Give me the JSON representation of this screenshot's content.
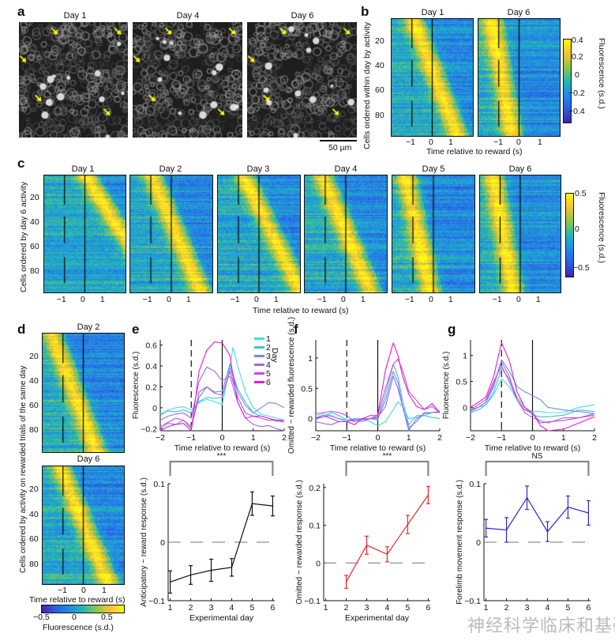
{
  "panel_a": {
    "label": "a",
    "titles": [
      "Day 1",
      "Day 4",
      "Day 6"
    ],
    "scale_bar": "50 µm",
    "arrow_color": "#ffff00"
  },
  "panel_b": {
    "label": "b",
    "titles": [
      "Day 1",
      "Day 6"
    ],
    "ylabel": "Cells ordered within day by activity",
    "xlabel": "Time relative to reward (s)",
    "yticks": [
      "20",
      "40",
      "60",
      "80"
    ],
    "xticks": [
      "−1",
      "0",
      "1"
    ],
    "colorbar_ticks": [
      "0.4",
      "0.2",
      "0",
      "−0.2",
      "−0.4"
    ],
    "colorbar_label": "Fluorescence (s.d.)"
  },
  "panel_c": {
    "label": "c",
    "titles": [
      "Day 1",
      "Day 2",
      "Day 3",
      "Day 4",
      "Day 5",
      "Day 6"
    ],
    "ylabel": "Cells ordered by day 6 activity",
    "xlabel": "Time relative to reward (s)",
    "yticks": [
      "20",
      "40",
      "60",
      "80"
    ],
    "xticks": [
      "−1",
      "0",
      "1"
    ],
    "colorbar_ticks": [
      "0.5",
      "0",
      "−0.5"
    ],
    "colorbar_label": "Fluorescence (s.d.)"
  },
  "panel_d": {
    "label": "d",
    "titles": [
      "Day 2",
      "Day 6"
    ],
    "ylabel": "Cells ordered by activity on rewarded trials of the same day",
    "xlabel": "Time relative to reward (s)",
    "yticks": [
      "20",
      "40",
      "60",
      "80"
    ],
    "xticks": [
      "−1",
      "0",
      "1"
    ],
    "colorbar_ticks": [
      "−0.5",
      "0",
      "0.5"
    ],
    "colorbar_label": "Fluorescence (s.d.)"
  },
  "panel_e": {
    "label": "e"
  },
  "panel_f": {
    "label": "f"
  },
  "panel_g": {
    "label": "g"
  },
  "legend": {
    "title": "Day",
    "entries": [
      {
        "label": "1",
        "color": "#3fe0e6"
      },
      {
        "label": "2",
        "color": "#4db8d6"
      },
      {
        "label": "3",
        "color": "#6b8ee6"
      },
      {
        "label": "4",
        "color": "#9b6ae6"
      },
      {
        "label": "5",
        "color": "#c84ad6"
      },
      {
        "label": "6",
        "color": "#e81cd0"
      }
    ]
  },
  "watermark": "神经科学临床和基础",
  "chart_data": [
    {
      "id": "e-top",
      "type": "line",
      "title": "",
      "xlabel": "Time relative to reward (s)",
      "ylabel": "Fluorescence (s.d.)",
      "xlim": [
        -2,
        2
      ],
      "ylim": [
        -0.22,
        0.65
      ],
      "xticks": [
        -2,
        -1,
        0,
        1,
        2
      ],
      "xtick_labels": [
        "−2",
        "−1",
        "0",
        "1",
        "2"
      ],
      "yticks": [
        -0.2,
        0,
        0.2,
        0.4,
        0.6
      ],
      "ytick_labels": [
        "−0.2",
        "0",
        "0.2",
        "0.4",
        "0.6"
      ],
      "vlines": [
        {
          "x": -1,
          "style": "dashed"
        },
        {
          "x": 0,
          "style": "solid"
        }
      ],
      "x": [
        -2,
        -1.75,
        -1.5,
        -1.25,
        -1,
        -0.75,
        -0.5,
        -0.25,
        0,
        0.25,
        0.35,
        0.5,
        0.75,
        1,
        1.25,
        1.5,
        1.75,
        2
      ],
      "series": [
        {
          "name": "1",
          "values": [
            -0.08,
            -0.02,
            0.0,
            0.01,
            -0.02,
            0.05,
            0.08,
            0.06,
            0.03,
            0.4,
            0.58,
            0.4,
            0.15,
            0.0,
            -0.06,
            -0.08,
            -0.1,
            -0.12
          ]
        },
        {
          "name": "2",
          "values": [
            -0.06,
            -0.03,
            -0.04,
            -0.02,
            -0.05,
            0.06,
            0.1,
            0.09,
            0.1,
            0.38,
            0.3,
            0.15,
            0.02,
            -0.05,
            -0.08,
            -0.1,
            -0.13,
            -0.12
          ]
        },
        {
          "name": "3",
          "values": [
            -0.2,
            -0.15,
            -0.16,
            -0.12,
            -0.18,
            0.1,
            0.2,
            0.15,
            0.16,
            0.42,
            0.32,
            0.18,
            0.05,
            -0.05,
            0.0,
            0.05,
            0.04,
            0.0
          ]
        },
        {
          "name": "4",
          "values": [
            -0.12,
            -0.08,
            -0.06,
            -0.05,
            -0.1,
            0.25,
            0.39,
            0.35,
            0.26,
            0.3,
            0.2,
            0.05,
            -0.1,
            -0.16,
            -0.18,
            -0.17,
            -0.2,
            -0.22
          ]
        },
        {
          "name": "5",
          "values": [
            -0.18,
            -0.14,
            -0.1,
            -0.12,
            -0.2,
            0.15,
            0.2,
            0.14,
            0.12,
            0.35,
            0.25,
            0.1,
            -0.05,
            -0.08,
            -0.1,
            -0.12,
            -0.12,
            -0.14
          ]
        },
        {
          "name": "6",
          "values": [
            -0.22,
            -0.18,
            -0.16,
            -0.15,
            -0.22,
            0.35,
            0.55,
            0.63,
            0.62,
            0.5,
            0.3,
            0.05,
            -0.1,
            -0.08,
            -0.08,
            -0.1,
            -0.12,
            -0.12
          ]
        }
      ]
    },
    {
      "id": "e-bottom",
      "type": "line",
      "xlabel": "Experimental day",
      "ylabel": "Anticipatory − reward response (s.d.)",
      "xlim": [
        0.9,
        6.1
      ],
      "ylim": [
        -0.1,
        0.1
      ],
      "xticks": [
        1,
        2,
        3,
        4,
        5,
        6
      ],
      "yticks": [
        -0.1,
        0,
        0.1
      ],
      "ytick_labels": [
        "−0.1",
        "0",
        "0.1"
      ],
      "significance": "***",
      "bracket": [
        1,
        6
      ],
      "color": "#111111",
      "x": [
        1,
        2,
        3,
        4,
        5,
        6
      ],
      "values": [
        -0.068,
        -0.056,
        -0.048,
        -0.043,
        0.066,
        0.062
      ],
      "errors": [
        0.019,
        0.016,
        0.019,
        0.015,
        0.02,
        0.017
      ]
    },
    {
      "id": "f-top",
      "type": "line",
      "xlabel": "Time relative to reward (s)",
      "ylabel": "Omitted − rewarded fluorescence (s.d.)",
      "xlim": [
        -2,
        2
      ],
      "ylim": [
        -0.2,
        1.3
      ],
      "xticks": [
        -2,
        -1,
        0,
        1,
        2
      ],
      "xtick_labels": [
        "−2",
        "−1",
        "0",
        "1",
        "2"
      ],
      "yticks": [
        0,
        0.5,
        1
      ],
      "ytick_labels": [
        "0",
        "0.5",
        "1"
      ],
      "vlines": [
        {
          "x": -1,
          "style": "dashed"
        },
        {
          "x": 0,
          "style": "solid"
        }
      ],
      "x": [
        -2,
        -1.75,
        -1.5,
        -1.25,
        -1,
        -0.75,
        -0.5,
        -0.25,
        0,
        0.25,
        0.5,
        0.65,
        0.8,
        1,
        1.25,
        1.5,
        1.75,
        2
      ],
      "series": [
        {
          "name": "1",
          "values": [
            0.05,
            0.08,
            0.05,
            0.0,
            -0.02,
            0.0,
            0.0,
            -0.05,
            -0.12,
            -0.05,
            0.15,
            0.28,
            0.2,
            0.0,
            0.02,
            0.05,
            0.1,
            0.12
          ]
        },
        {
          "name": "2",
          "values": [
            0.0,
            0.02,
            0.1,
            0.05,
            -0.02,
            -0.05,
            0.0,
            0.0,
            -0.02,
            0.4,
            0.9,
            0.7,
            0.3,
            -0.1,
            0.05,
            0.05,
            0.02,
            0.0
          ]
        },
        {
          "name": "3",
          "values": [
            0.02,
            0.05,
            0.04,
            0.0,
            -0.05,
            -0.02,
            -0.05,
            0.0,
            0.0,
            0.3,
            0.78,
            0.6,
            0.2,
            -0.2,
            0.0,
            0.08,
            0.1,
            0.1
          ]
        },
        {
          "name": "4",
          "values": [
            -0.05,
            -0.08,
            -0.1,
            -0.05,
            -0.05,
            0.0,
            -0.02,
            0.0,
            0.02,
            0.2,
            0.7,
            0.5,
            0.2,
            -0.15,
            -0.05,
            0.1,
            0.1,
            0.12
          ]
        },
        {
          "name": "5",
          "values": [
            0.08,
            0.1,
            0.12,
            0.1,
            0.05,
            -0.05,
            0.0,
            0.0,
            0.05,
            0.5,
            0.9,
            0.98,
            0.8,
            0.45,
            0.3,
            0.15,
            0.2,
            0.1
          ]
        },
        {
          "name": "6",
          "values": [
            0.0,
            0.05,
            0.0,
            -0.05,
            -0.05,
            -0.1,
            0.0,
            0.05,
            0.05,
            0.8,
            1.25,
            1.05,
            0.7,
            0.4,
            0.2,
            0.15,
            0.25,
            0.1
          ]
        }
      ]
    },
    {
      "id": "f-bottom",
      "type": "line",
      "xlabel": "Experimental day",
      "ylabel": "Omitted − rewarded response (s.d.)",
      "xlim": [
        0.9,
        6.1
      ],
      "ylim": [
        -0.1,
        0.21
      ],
      "xticks": [
        1,
        2,
        3,
        4,
        5,
        6
      ],
      "yticks": [
        -0.1,
        0,
        0.1,
        0.2
      ],
      "ytick_labels": [
        "−0.1",
        "0",
        "0.1",
        "0.2"
      ],
      "significance": "***",
      "bracket": [
        2,
        6
      ],
      "color": "#e8272e",
      "x": [
        2,
        3,
        4,
        5,
        6
      ],
      "values": [
        -0.05,
        0.047,
        0.023,
        0.102,
        0.18
      ],
      "errors": [
        0.017,
        0.024,
        0.02,
        0.024,
        0.023
      ]
    },
    {
      "id": "g-top",
      "type": "line",
      "xlabel": "Time relative to reward (s)",
      "ylabel": "Fluorescence (s.d.)",
      "xlim": [
        -2,
        2
      ],
      "ylim": [
        -0.45,
        1.3
      ],
      "xticks": [
        -2,
        -1,
        0,
        1,
        2
      ],
      "xtick_labels": [
        "−2",
        "−1",
        "0",
        "1",
        "2"
      ],
      "yticks": [
        0,
        0.5,
        1
      ],
      "ytick_labels": [
        "0",
        "0.5",
        "1"
      ],
      "vlines": [
        {
          "x": -1,
          "style": "dashed"
        },
        {
          "x": 0,
          "style": "solid"
        }
      ],
      "x": [
        -2,
        -1.75,
        -1.5,
        -1.25,
        -1,
        -0.75,
        -0.5,
        -0.25,
        0,
        0.25,
        0.5,
        1,
        1.5,
        2
      ],
      "series": [
        {
          "name": "1",
          "values": [
            -0.05,
            0.0,
            0.05,
            0.25,
            0.55,
            0.4,
            0.15,
            -0.05,
            -0.08,
            -0.08,
            -0.1,
            -0.1,
            0.0,
            0.05
          ]
        },
        {
          "name": "2",
          "values": [
            -0.1,
            -0.05,
            0.05,
            0.3,
            0.75,
            0.55,
            0.2,
            0.0,
            -0.15,
            -0.18,
            -0.18,
            -0.15,
            -0.05,
            -0.08
          ]
        },
        {
          "name": "3",
          "values": [
            -0.08,
            0.0,
            0.1,
            0.4,
            0.92,
            0.7,
            0.4,
            0.3,
            0.23,
            0.15,
            0.0,
            -0.05,
            -0.08,
            -0.12
          ]
        },
        {
          "name": "4",
          "values": [
            -0.05,
            0.0,
            0.1,
            0.45,
            0.88,
            0.6,
            0.15,
            -0.1,
            -0.2,
            -0.25,
            -0.3,
            -0.2,
            -0.2,
            -0.12
          ]
        },
        {
          "name": "5",
          "values": [
            -0.05,
            0.05,
            0.15,
            0.5,
            0.8,
            0.5,
            0.15,
            -0.05,
            -0.1,
            -0.3,
            -0.28,
            -0.25,
            -0.2,
            -0.15
          ]
        },
        {
          "name": "6",
          "values": [
            0.0,
            0.1,
            0.2,
            0.6,
            1.25,
            0.9,
            0.3,
            0.0,
            -0.1,
            -0.35,
            -0.45,
            -0.42,
            -0.3,
            -0.18
          ]
        }
      ]
    },
    {
      "id": "g-bottom",
      "type": "line",
      "xlabel": "",
      "ylabel": "Forelimb movement  response (s.d.)",
      "xlim": [
        0.9,
        6.1
      ],
      "ylim": [
        -0.1,
        0.1
      ],
      "xticks": [
        1,
        2,
        3,
        4,
        5,
        6
      ],
      "yticks": [
        -0.1,
        0,
        0.1
      ],
      "ytick_labels": [
        "−0.1",
        "0",
        "0.1"
      ],
      "significance": "NS",
      "bracket": [
        1,
        6
      ],
      "color": "#2b2bd0",
      "x": [
        1,
        2,
        3,
        4,
        5,
        6
      ],
      "values": [
        0.024,
        0.021,
        0.076,
        0.018,
        0.06,
        0.05
      ],
      "errors": [
        0.015,
        0.021,
        0.02,
        0.017,
        0.019,
        0.021
      ]
    }
  ]
}
